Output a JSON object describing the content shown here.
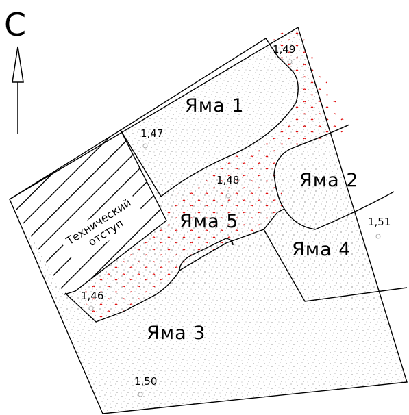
{
  "north_label": "С",
  "pits": [
    {
      "id": "pit-1",
      "label": "Яма 1"
    },
    {
      "id": "pit-2",
      "label": "Яма 2"
    },
    {
      "id": "pit-3",
      "label": "Яма 3"
    },
    {
      "id": "pit-4",
      "label": "Яма 4"
    },
    {
      "id": "pit-5",
      "label": "Яма 5"
    }
  ],
  "elevations": [
    "1,49",
    "1,47",
    "1,48",
    "1,51",
    "1,46",
    "1,50"
  ],
  "tech_step": {
    "line1": "Технический",
    "line2": "отступ"
  },
  "colors": {
    "outline": "#000000",
    "fill_dots": "#444444",
    "red_marks": "#e01010"
  }
}
